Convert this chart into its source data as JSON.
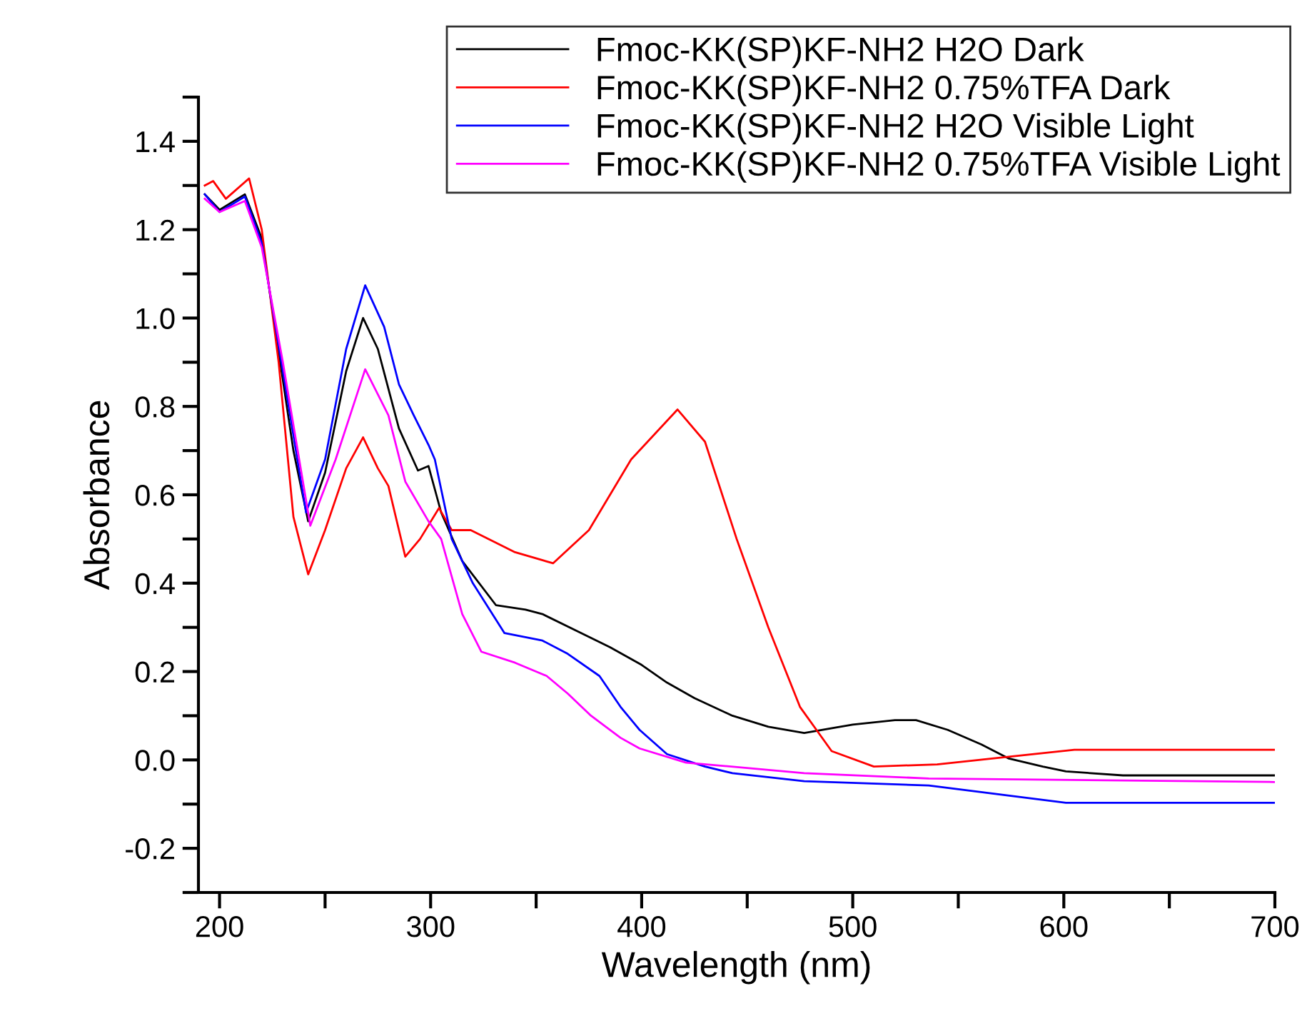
{
  "chart_data": {
    "type": "line",
    "xlabel": "Wavelength (nm)",
    "ylabel": "Absorbance",
    "xlim": [
      190,
      700
    ],
    "ylim": [
      -0.3,
      1.5
    ],
    "xticks": [
      200,
      {
        "value": 250,
        "label": null
      },
      300,
      {
        "value": 350,
        "label": null
      },
      400,
      {
        "value": 450,
        "label": null
      },
      500,
      {
        "value": 550,
        "label": null
      },
      600,
      {
        "value": 650,
        "label": null
      },
      700
    ],
    "yticks": [
      {
        "value": -0.3,
        "label": null
      },
      -0.2,
      {
        "value": -0.1,
        "label": null
      },
      {
        "value": 0,
        "label": "0.0"
      },
      {
        "value": 0.1,
        "label": null
      },
      0.2,
      {
        "value": 0.3,
        "label": null
      },
      0.4,
      {
        "value": 0.5,
        "label": null
      },
      0.6,
      {
        "value": 0.7,
        "label": null
      },
      0.8,
      {
        "value": 0.9,
        "label": null
      },
      {
        "value": 1,
        "label": "1.0"
      },
      {
        "value": 1.1,
        "label": null
      },
      1.2,
      {
        "value": 1.3,
        "label": null
      },
      1.4,
      {
        "value": 1.5,
        "label": null
      }
    ],
    "grid": false,
    "legend": "top right",
    "marker": "none",
    "line_style": "solid",
    "series": [
      {
        "name": "Fmoc-KK(SP)KF-NH2 H2O Dark",
        "color": "#000000",
        "x": [
          193,
          200,
          212,
          220,
          235,
          242,
          250,
          260,
          268,
          275,
          285,
          294,
          299,
          305,
          315,
          331,
          345,
          353,
          370,
          385,
          400,
          412,
          425,
          443,
          460,
          477,
          500,
          520,
          530,
          545,
          561,
          574,
          590,
          601,
          628,
          700
        ],
        "values": [
          1.28,
          1.245,
          1.28,
          1.18,
          0.7,
          0.54,
          0.65,
          0.88,
          1.0,
          0.93,
          0.75,
          0.655,
          0.665,
          0.56,
          0.45,
          0.35,
          0.34,
          0.33,
          0.29,
          0.255,
          0.215,
          0.175,
          0.14,
          0.1,
          0.075,
          0.061,
          0.08,
          0.09,
          0.09,
          0.068,
          0.035,
          0.003,
          -0.015,
          -0.026,
          -0.035,
          -0.035
        ]
      },
      {
        "name": "Fmoc-KK(SP)KF-NH2 0.75%TFA Dark",
        "color": "#ff0000",
        "x": [
          193,
          197,
          203,
          214,
          220,
          228,
          235,
          242,
          250,
          260,
          268,
          275,
          280,
          288,
          295,
          304,
          310,
          319,
          340,
          358,
          375,
          395,
          417,
          430,
          445,
          460,
          475,
          490,
          510,
          540,
          570,
          605,
          700
        ],
        "values": [
          1.3,
          1.31,
          1.27,
          1.316,
          1.2,
          0.9,
          0.55,
          0.42,
          0.52,
          0.66,
          0.73,
          0.66,
          0.62,
          0.46,
          0.5,
          0.57,
          0.52,
          0.52,
          0.47,
          0.445,
          0.52,
          0.68,
          0.793,
          0.72,
          0.5,
          0.3,
          0.12,
          0.02,
          -0.015,
          -0.01,
          0.005,
          0.023,
          0.023
        ]
      },
      {
        "name": "Fmoc-KK(SP)KF-NH2 H2O Visible Light",
        "color": "#0000ff",
        "x": [
          193,
          200,
          212,
          220,
          241,
          250,
          260,
          269,
          278,
          285,
          292,
          299,
          302,
          310,
          320,
          335,
          353,
          365,
          380,
          390,
          399,
          412,
          430,
          443,
          477,
          536,
          601,
          700
        ],
        "values": [
          1.28,
          1.24,
          1.275,
          1.17,
          0.56,
          0.68,
          0.93,
          1.074,
          0.98,
          0.85,
          0.78,
          0.713,
          0.68,
          0.5,
          0.4,
          0.287,
          0.27,
          0.24,
          0.19,
          0.12,
          0.068,
          0.013,
          -0.015,
          -0.03,
          -0.048,
          -0.058,
          -0.097,
          -0.097
        ]
      },
      {
        "name": "Fmoc-KK(SP)KF-NH2 0.75%TFA Visible Light",
        "color": "#ff00ff",
        "x": [
          193,
          200,
          212,
          220,
          230,
          243,
          255,
          269,
          280,
          288,
          299,
          305,
          315,
          324,
          340,
          355,
          365,
          376,
          390,
          399,
          421,
          477,
          536,
          700
        ],
        "values": [
          1.27,
          1.24,
          1.265,
          1.16,
          0.9,
          0.53,
          0.68,
          0.884,
          0.78,
          0.63,
          0.54,
          0.5,
          0.33,
          0.245,
          0.22,
          0.19,
          0.15,
          0.1,
          0.05,
          0.026,
          -0.006,
          -0.03,
          -0.042,
          -0.05
        ]
      }
    ]
  }
}
